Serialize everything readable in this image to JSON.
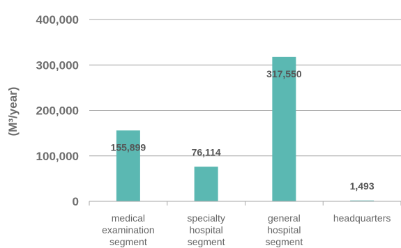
{
  "chart_data": {
    "type": "bar",
    "categories": [
      [
        "medical",
        "examination",
        "segment"
      ],
      [
        "specialty",
        "hospital",
        "segment"
      ],
      [
        "general",
        "hospital",
        "segment"
      ],
      [
        "headquarters"
      ]
    ],
    "values": [
      155899,
      76114,
      317550,
      1493
    ],
    "value_labels": [
      "155,899",
      "76,114",
      "317,550",
      "1,493"
    ],
    "ylabel": "(M³/year)",
    "ylim": [
      0,
      400000
    ],
    "yticks": [
      0,
      100000,
      200000,
      300000,
      400000
    ],
    "ytick_labels": [
      "0",
      "100,000",
      "200,000",
      "300,000",
      "400,000"
    ],
    "grid": true,
    "legend": "none",
    "colors": {
      "bar": "#5bb8b2",
      "grid": "#a6a6a6",
      "tick_text": "#6e6e6e",
      "value_text": "#555555",
      "category_text": "#666666"
    }
  }
}
